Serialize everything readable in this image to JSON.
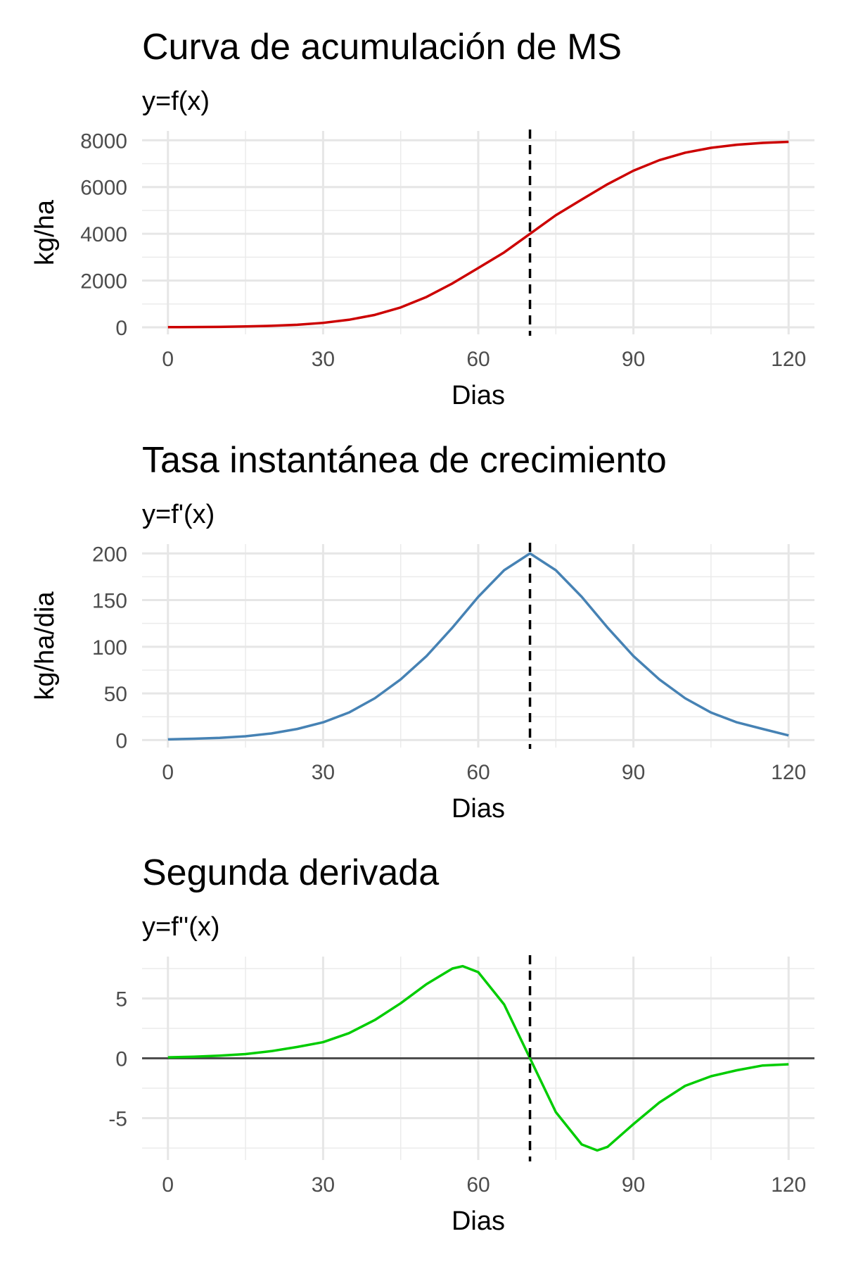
{
  "chart_data": [
    {
      "type": "line",
      "title": "Curva de acumulación de MS",
      "subtitle": "y=f(x)",
      "xlabel": "Dias",
      "ylabel": "kg/ha",
      "xlim": [
        -5,
        125
      ],
      "ylim": [
        -300,
        8400
      ],
      "x_ticks": [
        0,
        30,
        60,
        90,
        120
      ],
      "y_ticks": [
        0,
        2000,
        4000,
        6000,
        8000
      ],
      "y_tick_labels": [
        "0",
        "2000",
        "4000",
        "6000",
        "8000"
      ],
      "grid": true,
      "vline_x": 70,
      "zero_line": false,
      "line_color": "#cc0000",
      "series": [
        {
          "x": [
            0,
            5,
            10,
            15,
            20,
            25,
            30,
            35,
            40,
            45,
            50,
            55,
            60,
            65,
            70,
            75,
            80,
            85,
            90,
            95,
            100,
            105,
            110,
            115,
            120
          ],
          "values": [
            7,
            12,
            21,
            37,
            65,
            111,
            191,
            323,
            532,
            851,
            1301,
            1878,
            2537,
            3205,
            4000,
            4795,
            5463,
            6122,
            6699,
            7149,
            7468,
            7677,
            7809,
            7889,
            7935
          ]
        }
      ]
    },
    {
      "type": "line",
      "title": "Tasa instantánea de crecimiento",
      "subtitle": "y=f'(x)",
      "xlabel": "Dias",
      "ylabel": "kg/ha/dia",
      "xlim": [
        -5,
        125
      ],
      "ylim": [
        -8,
        210
      ],
      "x_ticks": [
        0,
        30,
        60,
        90,
        120
      ],
      "y_ticks": [
        0,
        50,
        100,
        150,
        200
      ],
      "y_tick_labels": [
        "0",
        "50",
        "100",
        "150",
        "200"
      ],
      "grid": true,
      "vline_x": 70,
      "zero_line": false,
      "line_color": "#4682b4",
      "series": [
        {
          "x": [
            0,
            5,
            10,
            15,
            20,
            25,
            30,
            35,
            40,
            45,
            50,
            55,
            60,
            65,
            70,
            75,
            80,
            85,
            90,
            95,
            100,
            105,
            110,
            115,
            120
          ],
          "values": [
            0.8,
            1.4,
            2.4,
            4.1,
            7.1,
            11.9,
            19.0,
            29.5,
            44.8,
            65.0,
            90.0,
            120.5,
            153.5,
            182.0,
            200,
            182.0,
            153.5,
            120.5,
            90.0,
            65.0,
            44.8,
            29.5,
            19.0,
            11.9,
            5.0
          ]
        }
      ]
    },
    {
      "type": "line",
      "title": "Segunda derivada",
      "subtitle": "y=f''(x)",
      "xlabel": "Dias",
      "ylabel": "",
      "xlim": [
        -5,
        125
      ],
      "ylim": [
        -8.5,
        8.5
      ],
      "x_ticks": [
        0,
        30,
        60,
        90,
        120
      ],
      "y_ticks": [
        -5,
        0,
        5
      ],
      "y_tick_labels": [
        "-5",
        "0",
        "5"
      ],
      "grid": true,
      "vline_x": 70,
      "zero_line": true,
      "line_color": "#00cc00",
      "series": [
        {
          "x": [
            0,
            5,
            10,
            15,
            20,
            25,
            30,
            35,
            40,
            45,
            50,
            55,
            57,
            60,
            65,
            70,
            75,
            80,
            83,
            85,
            90,
            95,
            100,
            105,
            110,
            115,
            120
          ],
          "values": [
            0.08,
            0.13,
            0.22,
            0.35,
            0.6,
            0.95,
            1.35,
            2.1,
            3.2,
            4.6,
            6.2,
            7.5,
            7.7,
            7.2,
            4.5,
            0,
            -4.5,
            -7.2,
            -7.7,
            -7.4,
            -5.5,
            -3.7,
            -2.3,
            -1.5,
            -1.0,
            -0.6,
            -0.5
          ]
        }
      ]
    }
  ]
}
